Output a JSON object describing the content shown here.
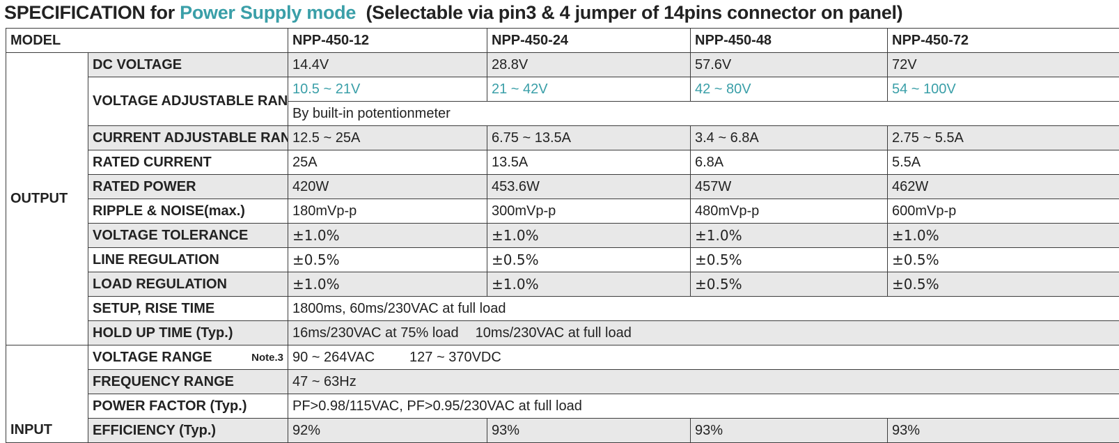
{
  "title": {
    "prefix": "SPECIFICATION for ",
    "accent": "Power Supply mode",
    "suffix": "  (Selectable via pin3 & 4 jumper of 14pins connector on panel)"
  },
  "header": {
    "label": "MODEL",
    "models": [
      "NPP-450-12",
      "NPP-450-24",
      "NPP-450-48",
      "NPP-450-72"
    ]
  },
  "output": {
    "label": "OUTPUT",
    "dc_voltage": {
      "label": "DC VOLTAGE",
      "values": [
        "14.4V",
        "28.8V",
        "57.6V",
        "72V"
      ]
    },
    "voltage_adj": {
      "label": "VOLTAGE ADJUSTABLE RANGE",
      "values": [
        "10.5 ~ 21V",
        "21 ~ 42V",
        "42 ~ 80V",
        "54 ~ 100V"
      ],
      "note": "By built-in potentionmeter"
    },
    "current_adj": {
      "label": "CURRENT ADJUSTABLE RANGE",
      "values": [
        "12.5 ~ 25A",
        "6.75 ~ 13.5A",
        "3.4 ~ 6.8A",
        "2.75 ~ 5.5A"
      ]
    },
    "rated_current": {
      "label": "RATED CURRENT",
      "values": [
        "25A",
        "13.5A",
        "6.8A",
        "5.5A"
      ]
    },
    "rated_power": {
      "label": "RATED POWER",
      "values": [
        "420W",
        "453.6W",
        "457W",
        "462W"
      ]
    },
    "ripple": {
      "label": "RIPPLE & NOISE(max.)",
      "values": [
        "180mVp-p",
        "300mVp-p",
        "480mVp-p",
        "600mVp-p"
      ]
    },
    "voltage_tol": {
      "label": "VOLTAGE TOLERANCE",
      "values": [
        "±1.0%",
        "±1.0%",
        "±1.0%",
        "±1.0%"
      ]
    },
    "line_reg": {
      "label": "LINE REGULATION",
      "values": [
        "±0.5%",
        "±0.5%",
        "±0.5%",
        "±0.5%"
      ]
    },
    "load_reg": {
      "label": "LOAD REGULATION",
      "values": [
        "±1.0%",
        "±1.0%",
        "±0.5%",
        "±0.5%"
      ]
    },
    "setup": {
      "label": "SETUP, RISE TIME",
      "value": "1800ms, 60ms/230VAC at full load"
    },
    "holdup": {
      "label": "HOLD UP TIME (Typ.)",
      "value_a": "16ms/230VAC at 75% load",
      "value_b": "10ms/230VAC at full load"
    }
  },
  "input": {
    "label": "INPUT",
    "voltage_range": {
      "label": "VOLTAGE RANGE",
      "note": "Note.3",
      "value_a": "90 ~ 264VAC",
      "value_b": "127 ~ 370VDC"
    },
    "freq_range": {
      "label": "FREQUENCY RANGE",
      "value": "47 ~ 63Hz"
    },
    "power_factor": {
      "label": "POWER FACTOR (Typ.)",
      "value": "PF>0.98/115VAC, PF>0.95/230VAC at full load"
    },
    "efficiency": {
      "label": "EFFICIENCY (Typ.)",
      "values": [
        "92%",
        "93%",
        "93%",
        "93%"
      ]
    }
  },
  "colors": {
    "accent": "#3a9fa8",
    "shade": "#e8e8e8",
    "border": "#3c3c3c"
  }
}
